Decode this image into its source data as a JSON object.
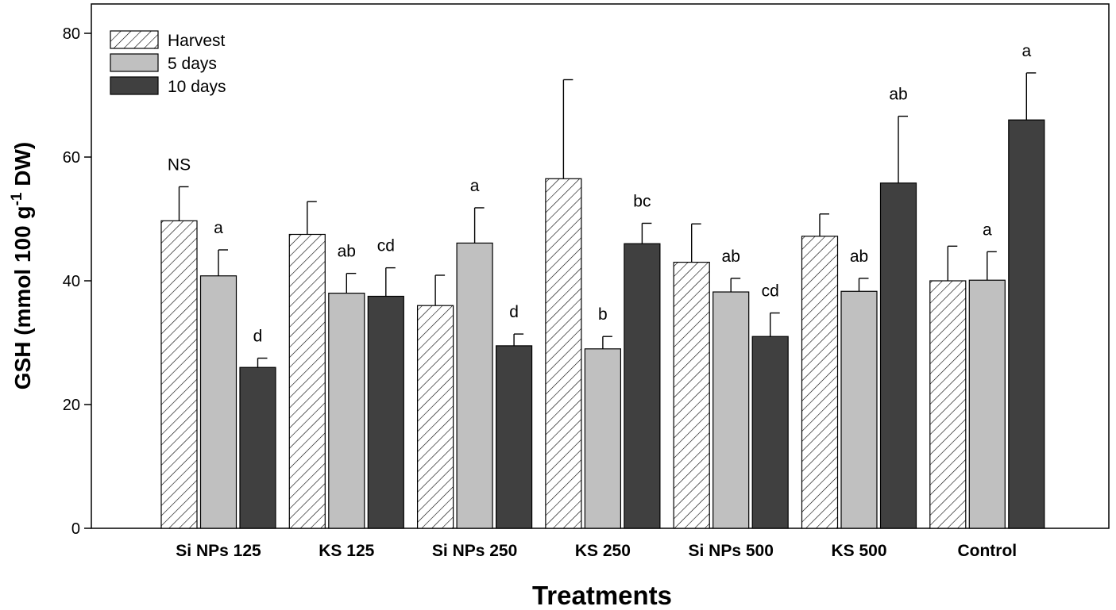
{
  "chart_data": {
    "type": "bar",
    "ylabel_main": "GSH (mmol 100 g",
    "ylabel_sup": "-1",
    "ylabel_tail": " DW)",
    "xlabel": "Treatments",
    "ylim": [
      0,
      80
    ],
    "yticks": [
      0,
      20,
      40,
      60,
      80
    ],
    "grid": false,
    "legend_position": "top-left",
    "categories": [
      "Si NPs 125",
      "KS 125",
      "Si NPs 250",
      "KS 250",
      "Si NPs 500",
      "KS 500",
      "Control"
    ],
    "series": [
      {
        "name": "Harvest",
        "style": "hatched",
        "fill": "#ffffff",
        "values": [
          49.7,
          47.5,
          36.0,
          56.5,
          43.0,
          47.2,
          40.0
        ],
        "errors": [
          5.5,
          5.3,
          4.9,
          16.0,
          6.2,
          3.6,
          5.6
        ],
        "labels": [
          "NS",
          "",
          "",
          "",
          "",
          "",
          ""
        ]
      },
      {
        "name": "5 days",
        "style": "solid",
        "fill": "#c0c0c0",
        "values": [
          40.8,
          38.0,
          46.1,
          29.0,
          38.2,
          38.3,
          40.1
        ],
        "errors": [
          4.2,
          3.2,
          5.7,
          2.0,
          2.2,
          2.1,
          4.6
        ],
        "labels": [
          "a",
          "ab",
          "a",
          "b",
          "ab",
          "ab",
          "a"
        ]
      },
      {
        "name": "10 days",
        "style": "solid",
        "fill": "#404040",
        "values": [
          26.0,
          37.5,
          29.5,
          46.0,
          31.0,
          55.8,
          66.0
        ],
        "errors": [
          1.5,
          4.6,
          1.9,
          3.3,
          3.8,
          10.8,
          7.6
        ],
        "labels": [
          "d",
          "cd",
          "d",
          "bc",
          "cd",
          "ab",
          "a"
        ]
      }
    ]
  }
}
